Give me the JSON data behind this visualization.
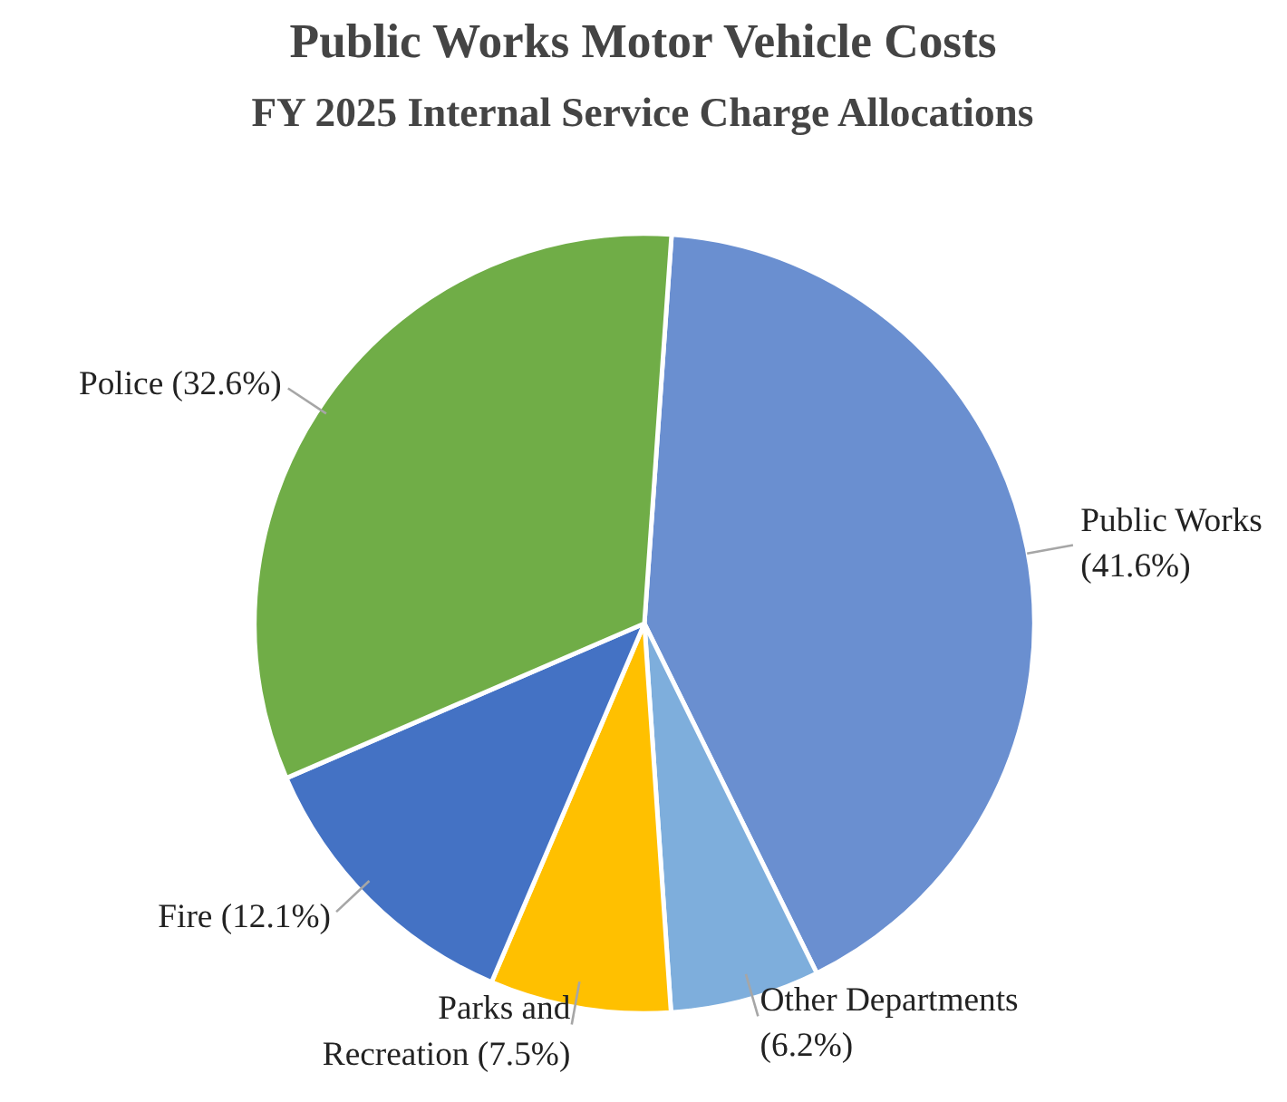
{
  "chart_data": {
    "type": "pie",
    "title": "Public Works Motor Vehicle Costs",
    "subtitle": "FY 2025 Internal Service Charge Allocations",
    "categories": [
      "Public Works",
      "Other Departments",
      "Parks and Recreation",
      "Fire",
      "Police"
    ],
    "values": [
      41.6,
      6.2,
      7.5,
      12.1,
      32.6
    ],
    "value_labels": [
      "(41.6%)",
      "(6.2%)",
      "(7.5%)",
      "(12.1%)",
      "(32.6%)"
    ],
    "colors": [
      "#6a8fd0",
      "#7eaedc",
      "#ffc000",
      "#4472c4",
      "#70ad47"
    ]
  }
}
